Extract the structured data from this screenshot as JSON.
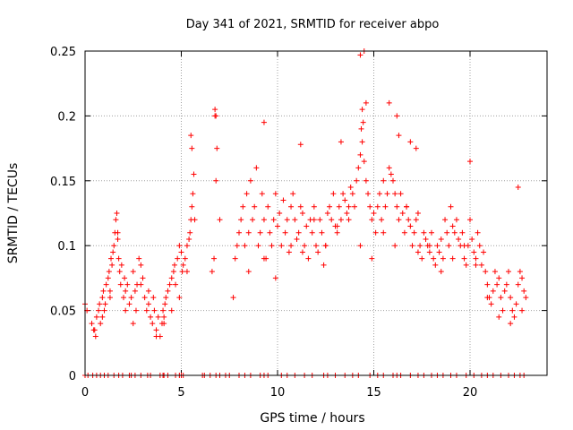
{
  "chart_data": {
    "type": "scatter",
    "title": "Day 341 of 2021, SRMTID for receiver abpo",
    "xlabel": "GPS time / hours",
    "ylabel": "SRMTID / TECUs",
    "xlim": [
      0,
      24
    ],
    "ylim": [
      0,
      0.25
    ],
    "xticks": [
      0,
      5,
      10,
      15,
      20
    ],
    "xtick_labels": [
      "0",
      "5",
      "10",
      "15",
      "20"
    ],
    "yticks": [
      0,
      0.05,
      0.1,
      0.15,
      0.2,
      0.25
    ],
    "ytick_labels": [
      "0",
      "0.05",
      "0.1",
      "0.15",
      "0.2",
      "0.25"
    ],
    "grid": true,
    "marker": "+",
    "color": "#ff0000",
    "series": [
      {
        "name": "SRMTID",
        "x": [
          0.0,
          0.1,
          0.35,
          0.45,
          0.55,
          0.6,
          0.7,
          0.75,
          0.8,
          0.9,
          0.95,
          1.0,
          1.05,
          1.1,
          1.2,
          1.25,
          1.3,
          1.35,
          1.4,
          1.45,
          1.5,
          1.55,
          1.6,
          1.65,
          1.7,
          1.75,
          1.8,
          1.85,
          1.9,
          2.0,
          2.05,
          2.1,
          2.2,
          2.3,
          2.4,
          2.5,
          2.6,
          2.65,
          2.7,
          2.8,
          2.9,
          3.0,
          3.1,
          3.2,
          3.3,
          3.4,
          3.5,
          3.55,
          3.6,
          3.7,
          3.8,
          3.9,
          4.0,
          4.05,
          4.1,
          4.15,
          4.2,
          4.3,
          4.4,
          4.5,
          4.6,
          4.65,
          4.7,
          4.8,
          4.9,
          5.0,
          5.05,
          5.1,
          5.2,
          5.3,
          5.4,
          5.45,
          5.5,
          5.55,
          5.6,
          5.65,
          5.7,
          6.6,
          6.7,
          6.75,
          6.8,
          6.85,
          7.0,
          7.7,
          7.8,
          7.9,
          8.0,
          8.1,
          8.2,
          8.3,
          8.4,
          8.5,
          8.6,
          8.7,
          8.8,
          8.9,
          9.0,
          9.1,
          9.2,
          9.3,
          9.4,
          9.5,
          9.6,
          9.7,
          9.8,
          9.9,
          10.0,
          10.1,
          10.2,
          10.3,
          10.4,
          10.5,
          10.6,
          10.7,
          10.8,
          10.9,
          11.0,
          11.1,
          11.2,
          11.3,
          11.4,
          11.5,
          11.6,
          11.7,
          11.8,
          11.9,
          12.0,
          12.1,
          12.2,
          12.3,
          12.4,
          12.5,
          12.6,
          12.7,
          12.8,
          12.9,
          13.0,
          13.1,
          13.2,
          13.3,
          13.4,
          13.5,
          13.6,
          13.7,
          13.8,
          13.9,
          14.0,
          14.1,
          14.2,
          14.3,
          14.4,
          14.5,
          14.6,
          14.7,
          14.8,
          14.9,
          15.0,
          15.1,
          15.2,
          15.3,
          15.4,
          15.5,
          15.6,
          15.7,
          15.8,
          15.9,
          16.0,
          16.1,
          16.2,
          16.3,
          16.4,
          16.5,
          16.6,
          16.7,
          16.8,
          16.9,
          17.0,
          17.1,
          17.2,
          17.3,
          17.4,
          17.5,
          17.6,
          17.7,
          17.8,
          17.9,
          18.0,
          18.1,
          18.2,
          18.3,
          18.4,
          18.5,
          18.6,
          18.7,
          18.8,
          18.9,
          19.0,
          19.1,
          19.2,
          19.3,
          19.4,
          19.5,
          19.6,
          19.7,
          19.8,
          19.9,
          20.0,
          20.1,
          20.2,
          20.3,
          20.4,
          20.5,
          20.6,
          20.7,
          20.8,
          20.9,
          21.0,
          21.1,
          21.2,
          21.3,
          21.4,
          21.5,
          21.6,
          21.7,
          21.8,
          21.9,
          22.0,
          22.1,
          22.2,
          22.3,
          22.4,
          22.5,
          22.6,
          22.7,
          22.8,
          22.9,
          0.5,
          0.9,
          1.3,
          1.7,
          2.1,
          2.5,
          2.9,
          3.3,
          3.7,
          4.1,
          4.5,
          4.9,
          5.3,
          8.5,
          9.3,
          9.9,
          10.7,
          11.3,
          11.9,
          12.5,
          13.1,
          13.7,
          14.3,
          14.9,
          15.5,
          16.1,
          16.7,
          17.3,
          17.9,
          18.5,
          19.1,
          19.7,
          20.3,
          20.9,
          21.5,
          22.1,
          22.7,
          14.3,
          14.5,
          14.6,
          14.4,
          14.45,
          14.35,
          15.8,
          16.2,
          16.3,
          16.9,
          17.2,
          6.75,
          6.8,
          5.5,
          5.55,
          9.3,
          11.2,
          13.3,
          20.0,
          22.5,
          0.0,
          0.15,
          0.4,
          0.6,
          0.8,
          1.0,
          1.2,
          1.5,
          1.75,
          1.95,
          2.3,
          2.4,
          2.6,
          2.9,
          3.25,
          3.4,
          3.9,
          4.05,
          4.1,
          4.3,
          4.7,
          4.9,
          5.0,
          5.1,
          6.1,
          6.2,
          6.5,
          6.8,
          7.0,
          7.3,
          7.5,
          8.0,
          8.3,
          8.6,
          9.1,
          9.3,
          9.5,
          10.2,
          10.5,
          10.9,
          11.4,
          11.8,
          12.4,
          12.6,
          13.0,
          13.5,
          13.9,
          14.2,
          14.8,
          15.2,
          15.5,
          16.0,
          16.2,
          16.4,
          16.9,
          17.3,
          17.6,
          18.0,
          18.3,
          18.6,
          19.0,
          19.3,
          19.8,
          20.2,
          20.6,
          20.9,
          21.2,
          21.6,
          22.0,
          22.3,
          22.6,
          22.8
        ],
        "y": [
          0.055,
          0.05,
          0.04,
          0.035,
          0.03,
          0.045,
          0.05,
          0.055,
          0.04,
          0.06,
          0.065,
          0.05,
          0.055,
          0.07,
          0.075,
          0.08,
          0.065,
          0.09,
          0.085,
          0.095,
          0.1,
          0.11,
          0.12,
          0.125,
          0.105,
          0.09,
          0.08,
          0.07,
          0.085,
          0.06,
          0.075,
          0.065,
          0.07,
          0.055,
          0.06,
          0.08,
          0.065,
          0.05,
          0.07,
          0.09,
          0.085,
          0.075,
          0.06,
          0.05,
          0.055,
          0.045,
          0.04,
          0.06,
          0.05,
          0.035,
          0.045,
          0.03,
          0.04,
          0.05,
          0.045,
          0.055,
          0.06,
          0.065,
          0.07,
          0.075,
          0.08,
          0.085,
          0.07,
          0.09,
          0.1,
          0.095,
          0.08,
          0.085,
          0.09,
          0.1,
          0.105,
          0.11,
          0.12,
          0.13,
          0.14,
          0.155,
          0.12,
          0.08,
          0.09,
          0.2,
          0.15,
          0.175,
          0.12,
          0.06,
          0.09,
          0.1,
          0.11,
          0.12,
          0.13,
          0.1,
          0.14,
          0.11,
          0.15,
          0.12,
          0.13,
          0.16,
          0.1,
          0.11,
          0.14,
          0.12,
          0.09,
          0.13,
          0.11,
          0.1,
          0.12,
          0.14,
          0.115,
          0.125,
          0.1,
          0.135,
          0.11,
          0.12,
          0.095,
          0.13,
          0.14,
          0.12,
          0.105,
          0.11,
          0.13,
          0.125,
          0.1,
          0.115,
          0.09,
          0.12,
          0.11,
          0.13,
          0.1,
          0.095,
          0.12,
          0.11,
          0.085,
          0.1,
          0.125,
          0.13,
          0.12,
          0.14,
          0.115,
          0.11,
          0.13,
          0.12,
          0.14,
          0.135,
          0.125,
          0.13,
          0.145,
          0.14,
          0.13,
          0.15,
          0.16,
          0.17,
          0.18,
          0.165,
          0.15,
          0.14,
          0.13,
          0.12,
          0.125,
          0.11,
          0.13,
          0.14,
          0.12,
          0.15,
          0.13,
          0.14,
          0.16,
          0.155,
          0.15,
          0.14,
          0.13,
          0.12,
          0.14,
          0.125,
          0.11,
          0.13,
          0.12,
          0.115,
          0.1,
          0.11,
          0.12,
          0.125,
          0.1,
          0.09,
          0.11,
          0.105,
          0.1,
          0.095,
          0.11,
          0.09,
          0.085,
          0.1,
          0.095,
          0.105,
          0.09,
          0.12,
          0.11,
          0.1,
          0.13,
          0.115,
          0.11,
          0.12,
          0.105,
          0.1,
          0.11,
          0.09,
          0.085,
          0.1,
          0.12,
          0.105,
          0.095,
          0.09,
          0.11,
          0.1,
          0.085,
          0.095,
          0.08,
          0.07,
          0.06,
          0.055,
          0.065,
          0.08,
          0.07,
          0.075,
          0.06,
          0.05,
          0.065,
          0.07,
          0.08,
          0.06,
          0.05,
          0.045,
          0.055,
          0.07,
          0.08,
          0.075,
          0.065,
          0.06,
          0.035,
          0.045,
          0.06,
          0.11,
          0.05,
          0.04,
          0.07,
          0.065,
          0.03,
          0.04,
          0.05,
          0.06,
          0.08,
          0.08,
          0.09,
          0.075,
          0.1,
          0.095,
          0.12,
          0.1,
          0.115,
          0.12,
          0.1,
          0.09,
          0.11,
          0.1,
          0.13,
          0.095,
          0.1,
          0.08,
          0.09,
          0.1,
          0.085,
          0.06,
          0.045,
          0.04,
          0.05,
          0.247,
          0.25,
          0.21,
          0.205,
          0.195,
          0.19,
          0.21,
          0.2,
          0.185,
          0.18,
          0.175,
          0.205,
          0.2,
          0.185,
          0.175,
          0.195,
          0.178,
          0.18,
          0.165,
          0.145,
          0.0,
          0.0,
          0.0,
          0.0,
          0.0,
          0.0,
          0.0,
          0.0,
          0.0,
          0.0,
          0.0,
          0.0,
          0.0,
          0.0,
          0.0,
          0.0,
          0.0,
          0.0,
          0.0,
          0.0,
          0.0,
          0.0,
          0.0,
          0.0,
          0.0,
          0.0,
          0.0,
          0.0,
          0.0,
          0.0,
          0.0,
          0.0,
          0.0,
          0.0,
          0.0,
          0.0,
          0.0,
          0.0,
          0.0,
          0.0,
          0.0,
          0.0,
          0.0,
          0.0,
          0.0,
          0.0,
          0.0,
          0.0,
          0.0,
          0.0,
          0.0,
          0.0,
          0.0,
          0.0,
          0.0,
          0.0,
          0.0,
          0.0,
          0.0,
          0.0,
          0.0,
          0.0,
          0.0,
          0.0,
          0.0,
          0.0,
          0.0,
          0.0,
          0.0,
          0.0,
          0.0,
          0.0
        ]
      }
    ]
  }
}
